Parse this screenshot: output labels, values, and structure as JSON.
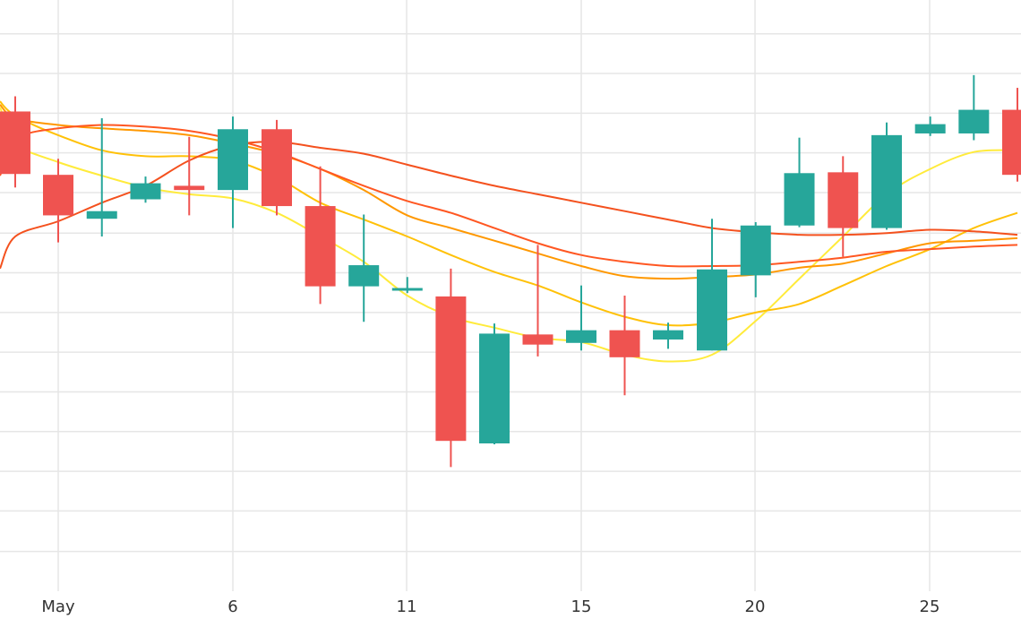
{
  "chart_data": {
    "type": "candlestick",
    "title": "",
    "xlabel": "",
    "ylabel": "",
    "grid": true,
    "legend": "none",
    "x_ticks": [
      {
        "day": 1,
        "label": "May"
      },
      {
        "day": 6,
        "label": "6"
      },
      {
        "day": 11,
        "label": "11"
      },
      {
        "day": 15,
        "label": "15"
      },
      {
        "day": 20,
        "label": "20"
      },
      {
        "day": 25,
        "label": "25"
      }
    ],
    "ylim": [
      0,
      700
    ],
    "gridline_values": [
      47,
      95,
      142,
      189,
      236,
      283,
      330,
      377,
      424,
      472,
      519,
      566,
      613,
      660
    ],
    "colors": {
      "up": "#26a69a",
      "down": "#ef5350",
      "grid": "#e6e6e6"
    },
    "candles": [
      {
        "day": 0.0,
        "open": 568,
        "high": 586,
        "low": 478,
        "close": 494
      },
      {
        "day": 1.0,
        "open": 493,
        "high": 512,
        "low": 413,
        "close": 445
      },
      {
        "day": 2.0,
        "open": 441,
        "high": 560,
        "low": 420,
        "close": 450
      },
      {
        "day": 3.0,
        "open": 464,
        "high": 491,
        "low": 460,
        "close": 483
      },
      {
        "day": 4.0,
        "open": 480,
        "high": 538,
        "low": 445,
        "close": 475
      },
      {
        "day": 5.0,
        "open": 475,
        "high": 562,
        "low": 430,
        "close": 547
      },
      {
        "day": 6.0,
        "open": 547,
        "high": 558,
        "low": 445,
        "close": 456
      },
      {
        "day": 7.0,
        "open": 456,
        "high": 503,
        "low": 340,
        "close": 361
      },
      {
        "day": 8.0,
        "open": 361,
        "high": 446,
        "low": 319,
        "close": 386
      },
      {
        "day": 9.0,
        "open": 356,
        "high": 372,
        "low": 353,
        "close": 359
      },
      {
        "day": 10.0,
        "open": 349,
        "high": 382,
        "low": 147,
        "close": 178
      },
      {
        "day": 11.0,
        "open": 175,
        "high": 317,
        "low": 174,
        "close": 305
      },
      {
        "day": 12.0,
        "open": 304,
        "high": 410,
        "low": 278,
        "close": 292
      },
      {
        "day": 13.0,
        "open": 294,
        "high": 362,
        "low": 285,
        "close": 309
      },
      {
        "day": 14.0,
        "open": 309,
        "high": 350,
        "low": 232,
        "close": 277
      },
      {
        "day": 15.0,
        "open": 298,
        "high": 318,
        "low": 287,
        "close": 309
      },
      {
        "day": 16.0,
        "open": 285,
        "high": 441,
        "low": 285,
        "close": 381
      },
      {
        "day": 17.0,
        "open": 374,
        "high": 437,
        "low": 348,
        "close": 433
      },
      {
        "day": 18.0,
        "open": 433,
        "high": 537,
        "low": 431,
        "close": 495
      },
      {
        "day": 19.0,
        "open": 496,
        "high": 515,
        "low": 396,
        "close": 430
      },
      {
        "day": 20.0,
        "open": 430,
        "high": 555,
        "low": 428,
        "close": 540
      },
      {
        "day": 21.0,
        "open": 542,
        "high": 562,
        "low": 539,
        "close": 553
      },
      {
        "day": 22.0,
        "open": 542,
        "high": 611,
        "low": 534,
        "close": 570
      },
      {
        "day": 23.0,
        "open": 570,
        "high": 596,
        "low": 485,
        "close": 493
      }
    ],
    "moving_averages": [
      {
        "color": "#ffeb3b",
        "points": [
          [
            -1.3,
            573
          ],
          [
            -0.6,
            548
          ],
          [
            0.0,
            528
          ],
          [
            1.0,
            508
          ],
          [
            2.0,
            492
          ],
          [
            3.0,
            478
          ],
          [
            4.0,
            470
          ],
          [
            5.0,
            465
          ],
          [
            6.0,
            448
          ],
          [
            7.0,
            420
          ],
          [
            8.0,
            390
          ],
          [
            9.0,
            350
          ],
          [
            10.0,
            325
          ],
          [
            11.0,
            312
          ],
          [
            12.0,
            300
          ],
          [
            13.0,
            295
          ],
          [
            14.0,
            280
          ],
          [
            15.0,
            272
          ],
          [
            16.0,
            280
          ],
          [
            17.0,
            320
          ],
          [
            18.0,
            370
          ],
          [
            19.0,
            420
          ],
          [
            20.0,
            470
          ],
          [
            21.0,
            500
          ],
          [
            22.0,
            520
          ],
          [
            23.0,
            522
          ]
        ]
      },
      {
        "color": "#ffc107",
        "points": [
          [
            -1.3,
            580
          ],
          [
            -0.5,
            568
          ],
          [
            0.3,
            555
          ],
          [
            1.0,
            540
          ],
          [
            2.0,
            522
          ],
          [
            3.0,
            515
          ],
          [
            4.0,
            515
          ],
          [
            5.0,
            510
          ],
          [
            6.0,
            490
          ],
          [
            7.0,
            460
          ],
          [
            8.0,
            440
          ],
          [
            9.0,
            420
          ],
          [
            10.0,
            398
          ],
          [
            11.0,
            378
          ],
          [
            12.0,
            362
          ],
          [
            13.0,
            342
          ],
          [
            14.0,
            325
          ],
          [
            15.0,
            315
          ],
          [
            16.0,
            318
          ],
          [
            17.0,
            330
          ],
          [
            18.0,
            340
          ],
          [
            19.0,
            362
          ],
          [
            20.0,
            385
          ],
          [
            21.0,
            405
          ],
          [
            22.0,
            430
          ],
          [
            23.0,
            448
          ]
        ]
      },
      {
        "color": "#ff9800",
        "points": [
          [
            -1.3,
            576
          ],
          [
            0.0,
            560
          ],
          [
            1.0,
            552
          ],
          [
            2.0,
            548
          ],
          [
            3.0,
            545
          ],
          [
            4.0,
            540
          ],
          [
            5.0,
            530
          ],
          [
            6.0,
            518
          ],
          [
            7.0,
            500
          ],
          [
            8.0,
            475
          ],
          [
            9.0,
            445
          ],
          [
            10.0,
            430
          ],
          [
            11.0,
            415
          ],
          [
            12.0,
            400
          ],
          [
            13.0,
            385
          ],
          [
            14.0,
            373
          ],
          [
            15.0,
            370
          ],
          [
            16.0,
            372
          ],
          [
            17.0,
            375
          ],
          [
            18.0,
            383
          ],
          [
            19.0,
            388
          ],
          [
            20.0,
            400
          ],
          [
            21.0,
            412
          ],
          [
            22.0,
            415
          ],
          [
            23.0,
            418
          ]
        ]
      },
      {
        "color": "#ff5722",
        "points": [
          [
            -1.3,
            492
          ],
          [
            -0.4,
            520
          ],
          [
            0.2,
            540
          ],
          [
            1.0,
            548
          ],
          [
            2.0,
            552
          ],
          [
            3.0,
            550
          ],
          [
            4.0,
            545
          ],
          [
            5.0,
            535
          ],
          [
            6.0,
            520
          ],
          [
            7.0,
            500
          ],
          [
            8.0,
            480
          ],
          [
            9.0,
            462
          ],
          [
            10.0,
            448
          ],
          [
            11.0,
            430
          ],
          [
            12.0,
            412
          ],
          [
            13.0,
            398
          ],
          [
            14.0,
            390
          ],
          [
            15.0,
            385
          ],
          [
            16.0,
            385
          ],
          [
            17.0,
            386
          ],
          [
            18.0,
            390
          ],
          [
            19.0,
            395
          ],
          [
            20.0,
            402
          ],
          [
            21.0,
            405
          ],
          [
            22.0,
            408
          ],
          [
            23.0,
            410
          ]
        ]
      },
      {
        "color": "#f4511e",
        "points": [
          [
            -1.3,
            382
          ],
          [
            0.0,
            420
          ],
          [
            1.0,
            438
          ],
          [
            2.0,
            460
          ],
          [
            3.0,
            480
          ],
          [
            4.0,
            510
          ],
          [
            5.0,
            528
          ],
          [
            6.0,
            532
          ],
          [
            7.0,
            525
          ],
          [
            8.0,
            518
          ],
          [
            9.0,
            505
          ],
          [
            10.0,
            492
          ],
          [
            11.0,
            480
          ],
          [
            12.0,
            470
          ],
          [
            13.0,
            460
          ],
          [
            14.0,
            450
          ],
          [
            15.0,
            440
          ],
          [
            16.0,
            430
          ],
          [
            17.0,
            425
          ],
          [
            18.0,
            422
          ],
          [
            19.0,
            422
          ],
          [
            20.0,
            424
          ],
          [
            21.0,
            428
          ],
          [
            22.0,
            426
          ],
          [
            23.0,
            422
          ]
        ]
      }
    ]
  }
}
